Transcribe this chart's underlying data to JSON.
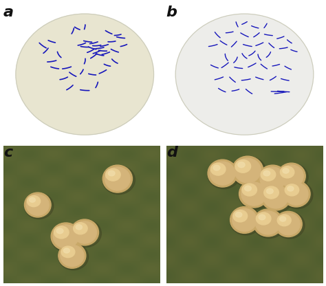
{
  "panel_labels": [
    "a",
    "b",
    "c",
    "d"
  ],
  "label_fontsize": 16,
  "label_color": "#111111",
  "background_color": "#ffffff",
  "panel_a": {
    "bg_color": "#f5f5f0",
    "circle_color": "#e8e5d0",
    "circle_edge": "#ccccbb",
    "bacteria_color": "#1515bb",
    "linewidth": 1.2
  },
  "panel_b": {
    "bg_color": "#f8f8f5",
    "circle_color": "#ededea",
    "circle_edge": "#ccccbb",
    "bacteria_color": "#1515bb",
    "linewidth": 1.0
  },
  "panel_c": {
    "bg_color_top": "#5a6535",
    "bg_color_mid": "#4a5528",
    "colony_base": "#c8a870",
    "colony_highlight": "#e8d090",
    "colony_shadow": "#9a8050"
  },
  "panel_d": {
    "bg_color_top": "#556030",
    "bg_color_mid": "#485025",
    "colony_base": "#c8a870",
    "colony_highlight": "#e8d090",
    "colony_shadow": "#9a8050"
  },
  "figsize": [
    4.74,
    4.16
  ],
  "dpi": 100
}
